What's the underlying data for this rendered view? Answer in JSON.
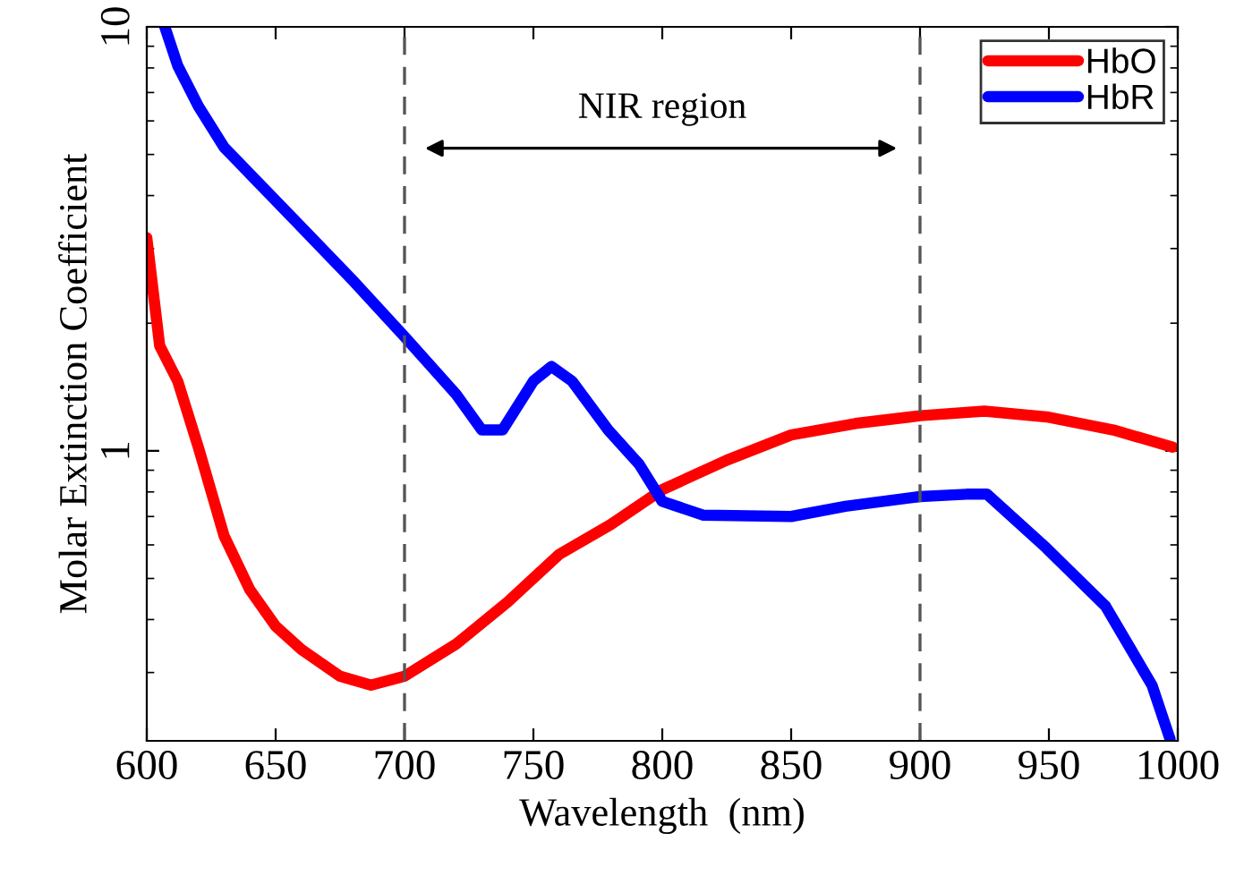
{
  "chart_data": {
    "type": "line",
    "xlabel": "Wavelength  (nm)",
    "ylabel": "Molar Extinction Coefficient",
    "log": "y",
    "xlim": [
      600,
      1000
    ],
    "xticks": [
      600,
      650,
      700,
      750,
      800,
      850,
      900,
      950,
      1000
    ],
    "ylim": [
      0.207,
      10
    ],
    "yticks": [
      1,
      10
    ],
    "grid": false,
    "legend": "top right",
    "marker": "none",
    "line_style": "solid",
    "series": [
      {
        "name": "HbO",
        "color": "#ff0000",
        "x": [
          600,
          605,
          612,
          620,
          630,
          640,
          650,
          660,
          675,
          687,
          700,
          720,
          740,
          760,
          780,
          800,
          825,
          850,
          875,
          900,
          925,
          950,
          975,
          998
        ],
        "values": [
          3.18,
          1.77,
          1.46,
          1.02,
          0.63,
          0.47,
          0.386,
          0.34,
          0.294,
          0.28,
          0.294,
          0.35,
          0.44,
          0.57,
          0.67,
          0.81,
          0.95,
          1.09,
          1.16,
          1.21,
          1.24,
          1.2,
          1.12,
          1.02
        ]
      },
      {
        "name": "HbR",
        "color": "#0000ff",
        "x": [
          607,
          612,
          620,
          630,
          640,
          660,
          680,
          700,
          720,
          730,
          738,
          750,
          757,
          765,
          779,
          791,
          800,
          816,
          850,
          871,
          900,
          918,
          926,
          949,
          972,
          990,
          997
        ],
        "values": [
          10,
          8.1,
          6.5,
          5.2,
          4.5,
          3.37,
          2.52,
          1.86,
          1.36,
          1.12,
          1.12,
          1.46,
          1.58,
          1.46,
          1.12,
          0.93,
          0.76,
          0.705,
          0.7,
          0.74,
          0.78,
          0.79,
          0.79,
          0.59,
          0.43,
          0.28,
          0.209
        ]
      }
    ],
    "ref_lines": [
      {
        "axis": "x",
        "value": 700,
        "color": "#555555",
        "line_style": "dashed"
      },
      {
        "axis": "x",
        "value": 900,
        "color": "#555555",
        "line_style": "dashed"
      }
    ],
    "annotations": [
      "NIR region"
    ]
  }
}
